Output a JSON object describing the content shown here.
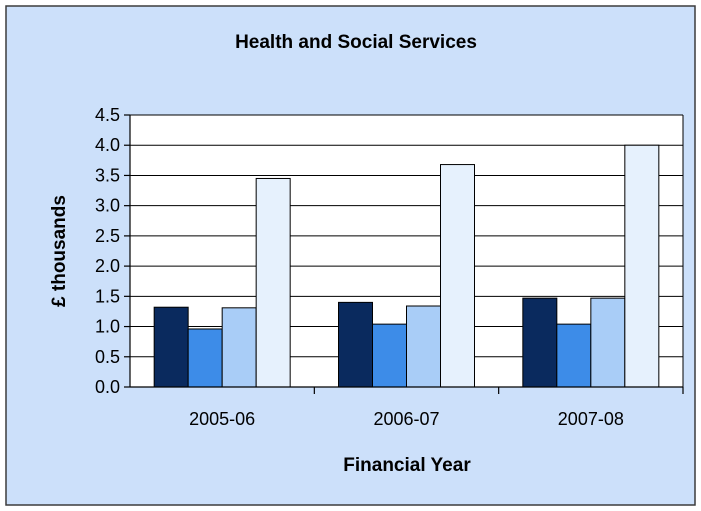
{
  "chart_data": {
    "type": "bar",
    "title": "Health and Social Services",
    "xlabel": "Financial Year",
    "ylabel": "£ thousands",
    "categories": [
      "2005-06",
      "2006-07",
      "2007-08"
    ],
    "series": [
      {
        "values": [
          1.32,
          1.4,
          1.47
        ]
      },
      {
        "values": [
          0.96,
          1.04,
          1.04
        ]
      },
      {
        "values": [
          1.31,
          1.34,
          1.47
        ]
      },
      {
        "values": [
          3.45,
          3.68,
          4.0
        ]
      }
    ],
    "ylim": [
      0,
      4.5
    ],
    "yticks": [
      "0.0",
      "0.5",
      "1.0",
      "1.5",
      "2.0",
      "2.5",
      "3.0",
      "3.5",
      "4.0",
      "4.5"
    ],
    "grid": true,
    "legend": "none"
  },
  "colors": {
    "background": "#cce0fa",
    "plot_area": "#ffffff",
    "series": [
      "#0a2a5e",
      "#3d8ce8",
      "#a9cdf7",
      "#e6f1fd"
    ]
  }
}
